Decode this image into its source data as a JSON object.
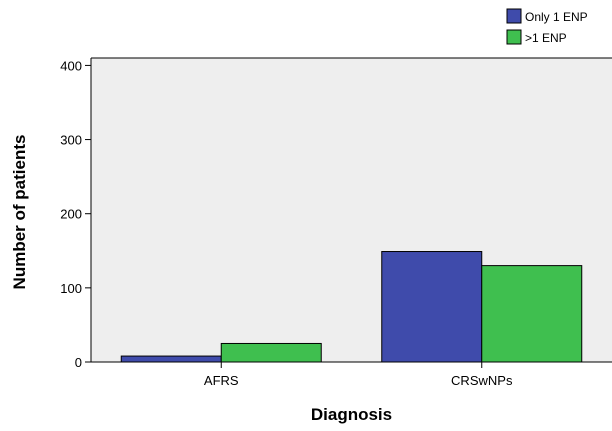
{
  "chart_data": {
    "type": "bar",
    "categories": [
      "AFRS",
      "CRSwNPs"
    ],
    "series": [
      {
        "name": "Only 1 ENP",
        "color": "#3f4bab",
        "values": [
          8,
          149
        ]
      },
      {
        "name": ">1 ENP",
        "color": "#3fbf4f",
        "values": [
          25,
          130
        ]
      }
    ],
    "xlabel": "Diagnosis",
    "ylabel": "Number of patients",
    "ylim": [
      0,
      410
    ],
    "yticks": [
      0,
      100,
      200,
      300,
      400
    ],
    "legend_position": "top-right",
    "grid": false,
    "plot_background": "#eeeeee"
  }
}
